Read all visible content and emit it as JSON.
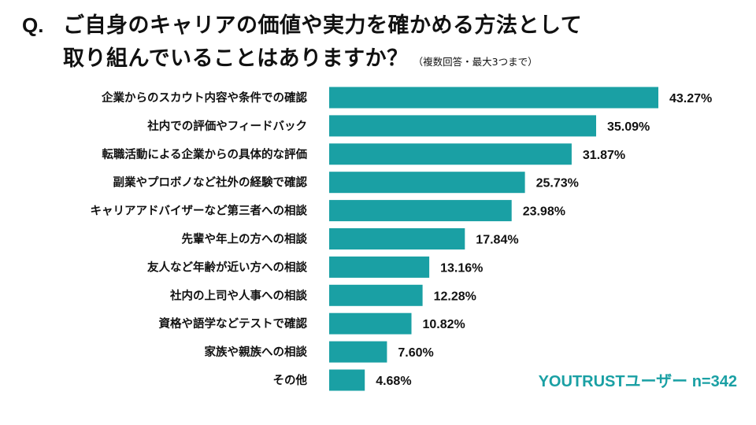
{
  "title": {
    "prefix": "Q.",
    "line1": "ご自身のキャリアの価値や実力を確かめる方法として",
    "line2": "取り組んでいることはありますか？",
    "note": "（複数回答・最大3つまで）"
  },
  "footnote": "YOUTRUSTユーザー n=342",
  "colors": {
    "bar": "#1aa0a4",
    "footnote": "#1aa0a4"
  },
  "chart_data": {
    "type": "bar",
    "orientation": "horizontal",
    "categories": [
      "企業からのスカウト内容や条件での確認",
      "社内での評価やフィードバック",
      "転職活動による企業からの具体的な評価",
      "副業やプロボノなど社外の経験で確認",
      "キャリアアドバイザーなど第三者への相談",
      "先輩や年上の方への相談",
      "友人など年齢が近い方への相談",
      "社内の上司や人事への相談",
      "資格や語学などテストで確認",
      "家族や親族への相談",
      "その他"
    ],
    "values": [
      43.27,
      35.09,
      31.87,
      25.73,
      23.98,
      17.84,
      13.16,
      12.28,
      10.82,
      7.6,
      4.68
    ],
    "value_labels": [
      "43.27%",
      "35.09%",
      "31.87%",
      "25.73%",
      "23.98%",
      "17.84%",
      "13.16%",
      "12.28%",
      "10.82%",
      "7.60%",
      "4.68%"
    ],
    "xlim": [
      0,
      50
    ],
    "grid": false,
    "legend": "none"
  }
}
